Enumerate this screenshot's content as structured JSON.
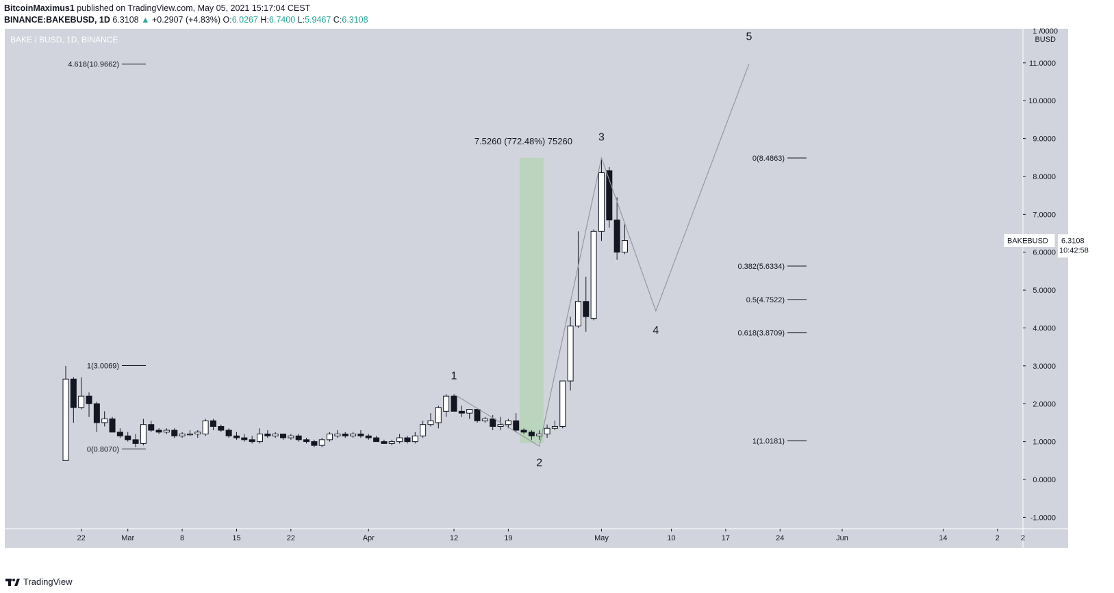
{
  "header": {
    "author": "BitcoinMaximus1",
    "published_text": "published on TradingView.com, May 05, 2021 15:17:04 CEST",
    "symbol": "BINANCE:BAKEBUSD, 1D",
    "last": "6.3108",
    "arrow": "▲",
    "change": "+0.2907 (+4.83%)",
    "o_label": "O:",
    "o": "6.0267",
    "h_label": "H:",
    "h": "6.7400",
    "l_label": "L:",
    "l": "5.9467",
    "c_label": "C:",
    "c": "6.3108"
  },
  "footer": {
    "brand": "TradingView"
  },
  "chart_data": {
    "type": "candlestick",
    "title": "BAKE / BUSD, 1D, BINANCE",
    "ylabel": "BUSD",
    "y_axis_top_label": "1 /0000",
    "ylim": [
      -1.3,
      11.9
    ],
    "y_ticks": [
      "11.0000",
      "10.0000",
      "9.0000",
      "8.0000",
      "7.0000",
      "6.0000",
      "5.0000",
      "4.0000",
      "3.0000",
      "2.0000",
      "1.0000",
      "0.0000",
      "-1.0000"
    ],
    "y_tick_values": [
      11,
      10,
      9,
      8,
      7,
      6,
      5,
      4,
      3,
      2,
      1,
      0,
      -1
    ],
    "x_start_day": 0,
    "x_end_day": 95,
    "x_ticks": [
      {
        "label": "22",
        "day": 2
      },
      {
        "label": "Mar",
        "day": 8
      },
      {
        "label": "8",
        "day": 15
      },
      {
        "label": "15",
        "day": 22
      },
      {
        "label": "22",
        "day": 29
      },
      {
        "label": "Apr",
        "day": 39
      },
      {
        "label": "12",
        "day": 50
      },
      {
        "label": "19",
        "day": 57
      },
      {
        "label": "May",
        "day": 69
      },
      {
        "label": "10",
        "day": 78
      },
      {
        "label": "17",
        "day": 85
      },
      {
        "label": "24",
        "day": 92
      },
      {
        "label": "Jun",
        "day": 100
      },
      {
        "label": "14",
        "day": 113
      },
      {
        "label": "2",
        "day": 120
      }
    ],
    "candles": [
      {
        "d": 0,
        "o": 0.5,
        "h": 3.0,
        "l": 0.5,
        "c": 2.65
      },
      {
        "d": 1,
        "o": 2.65,
        "h": 2.7,
        "l": 1.5,
        "c": 1.9
      },
      {
        "d": 2,
        "o": 1.9,
        "h": 2.7,
        "l": 1.85,
        "c": 2.2
      },
      {
        "d": 3,
        "o": 2.2,
        "h": 2.3,
        "l": 1.65,
        "c": 2.0
      },
      {
        "d": 4,
        "o": 2.0,
        "h": 2.05,
        "l": 1.25,
        "c": 1.5
      },
      {
        "d": 5,
        "o": 1.5,
        "h": 1.8,
        "l": 1.4,
        "c": 1.6
      },
      {
        "d": 6,
        "o": 1.6,
        "h": 1.65,
        "l": 1.25,
        "c": 1.25
      },
      {
        "d": 7,
        "o": 1.25,
        "h": 1.35,
        "l": 1.1,
        "c": 1.15
      },
      {
        "d": 8,
        "o": 1.15,
        "h": 1.25,
        "l": 1.0,
        "c": 1.05
      },
      {
        "d": 9,
        "o": 1.05,
        "h": 1.2,
        "l": 0.85,
        "c": 0.95
      },
      {
        "d": 10,
        "o": 0.95,
        "h": 1.6,
        "l": 0.9,
        "c": 1.45
      },
      {
        "d": 11,
        "o": 1.45,
        "h": 1.55,
        "l": 1.25,
        "c": 1.3
      },
      {
        "d": 12,
        "o": 1.3,
        "h": 1.35,
        "l": 1.2,
        "c": 1.25
      },
      {
        "d": 13,
        "o": 1.25,
        "h": 1.35,
        "l": 1.2,
        "c": 1.3
      },
      {
        "d": 14,
        "o": 1.3,
        "h": 1.35,
        "l": 1.1,
        "c": 1.15
      },
      {
        "d": 15,
        "o": 1.15,
        "h": 1.25,
        "l": 1.1,
        "c": 1.2
      },
      {
        "d": 16,
        "o": 1.2,
        "h": 1.3,
        "l": 1.15,
        "c": 1.2
      },
      {
        "d": 17,
        "o": 1.2,
        "h": 1.3,
        "l": 1.1,
        "c": 1.25
      },
      {
        "d": 18,
        "o": 1.2,
        "h": 1.6,
        "l": 1.15,
        "c": 1.55
      },
      {
        "d": 19,
        "o": 1.55,
        "h": 1.6,
        "l": 1.3,
        "c": 1.4
      },
      {
        "d": 20,
        "o": 1.4,
        "h": 1.45,
        "l": 1.25,
        "c": 1.3
      },
      {
        "d": 21,
        "o": 1.3,
        "h": 1.35,
        "l": 1.1,
        "c": 1.15
      },
      {
        "d": 22,
        "o": 1.15,
        "h": 1.25,
        "l": 1.05,
        "c": 1.1
      },
      {
        "d": 23,
        "o": 1.1,
        "h": 1.2,
        "l": 1.0,
        "c": 1.05
      },
      {
        "d": 24,
        "o": 1.05,
        "h": 1.15,
        "l": 0.95,
        "c": 1.0
      },
      {
        "d": 25,
        "o": 1.0,
        "h": 1.35,
        "l": 0.95,
        "c": 1.2
      },
      {
        "d": 26,
        "o": 1.2,
        "h": 1.3,
        "l": 1.1,
        "c": 1.15
      },
      {
        "d": 27,
        "o": 1.15,
        "h": 1.25,
        "l": 1.1,
        "c": 1.2
      },
      {
        "d": 28,
        "o": 1.2,
        "h": 1.2,
        "l": 1.05,
        "c": 1.1
      },
      {
        "d": 29,
        "o": 1.1,
        "h": 1.2,
        "l": 1.05,
        "c": 1.15
      },
      {
        "d": 30,
        "o": 1.15,
        "h": 1.2,
        "l": 1.0,
        "c": 1.05
      },
      {
        "d": 31,
        "o": 1.05,
        "h": 1.1,
        "l": 0.95,
        "c": 1.0
      },
      {
        "d": 32,
        "o": 1.0,
        "h": 1.05,
        "l": 0.85,
        "c": 0.9
      },
      {
        "d": 33,
        "o": 0.9,
        "h": 1.1,
        "l": 0.85,
        "c": 1.05
      },
      {
        "d": 34,
        "o": 1.05,
        "h": 1.25,
        "l": 1.0,
        "c": 1.2
      },
      {
        "d": 35,
        "o": 1.15,
        "h": 1.3,
        "l": 1.1,
        "c": 1.2
      },
      {
        "d": 36,
        "o": 1.2,
        "h": 1.25,
        "l": 1.1,
        "c": 1.15
      },
      {
        "d": 37,
        "o": 1.15,
        "h": 1.25,
        "l": 1.1,
        "c": 1.2
      },
      {
        "d": 38,
        "o": 1.2,
        "h": 1.3,
        "l": 1.1,
        "c": 1.15
      },
      {
        "d": 39,
        "o": 1.15,
        "h": 1.2,
        "l": 1.05,
        "c": 1.1
      },
      {
        "d": 40,
        "o": 1.1,
        "h": 1.15,
        "l": 1.0,
        "c": 1.0
      },
      {
        "d": 41,
        "o": 1.0,
        "h": 1.05,
        "l": 0.95,
        "c": 0.95
      },
      {
        "d": 42,
        "o": 0.95,
        "h": 1.05,
        "l": 0.9,
        "c": 1.0
      },
      {
        "d": 43,
        "o": 1.0,
        "h": 1.2,
        "l": 0.95,
        "c": 1.1
      },
      {
        "d": 44,
        "o": 1.1,
        "h": 1.15,
        "l": 0.95,
        "c": 1.0
      },
      {
        "d": 45,
        "o": 1.0,
        "h": 1.25,
        "l": 0.95,
        "c": 1.15
      },
      {
        "d": 46,
        "o": 1.15,
        "h": 1.55,
        "l": 1.1,
        "c": 1.45
      },
      {
        "d": 47,
        "o": 1.45,
        "h": 1.75,
        "l": 1.4,
        "c": 1.55
      },
      {
        "d": 48,
        "o": 1.5,
        "h": 1.95,
        "l": 1.35,
        "c": 1.9
      },
      {
        "d": 49,
        "o": 1.8,
        "h": 2.25,
        "l": 1.65,
        "c": 2.2
      },
      {
        "d": 50,
        "o": 2.2,
        "h": 2.25,
        "l": 1.8,
        "c": 1.8
      },
      {
        "d": 51,
        "o": 1.8,
        "h": 1.95,
        "l": 1.65,
        "c": 1.75
      },
      {
        "d": 52,
        "o": 1.75,
        "h": 1.85,
        "l": 1.6,
        "c": 1.85
      },
      {
        "d": 53,
        "o": 1.85,
        "h": 1.85,
        "l": 1.5,
        "c": 1.55
      },
      {
        "d": 54,
        "o": 1.55,
        "h": 1.65,
        "l": 1.5,
        "c": 1.6
      },
      {
        "d": 55,
        "o": 1.6,
        "h": 1.7,
        "l": 1.3,
        "c": 1.4
      },
      {
        "d": 56,
        "o": 1.4,
        "h": 1.65,
        "l": 1.3,
        "c": 1.45
      },
      {
        "d": 57,
        "o": 1.45,
        "h": 1.6,
        "l": 1.35,
        "c": 1.55
      },
      {
        "d": 58,
        "o": 1.55,
        "h": 1.75,
        "l": 1.25,
        "c": 1.3
      },
      {
        "d": 59,
        "o": 1.3,
        "h": 1.35,
        "l": 1.2,
        "c": 1.25
      },
      {
        "d": 60,
        "o": 1.25,
        "h": 1.3,
        "l": 1.05,
        "c": 1.15
      },
      {
        "d": 61,
        "o": 1.15,
        "h": 1.3,
        "l": 1.05,
        "c": 1.2
      },
      {
        "d": 62,
        "o": 1.2,
        "h": 1.45,
        "l": 1.1,
        "c": 1.35
      },
      {
        "d": 63,
        "o": 1.35,
        "h": 1.55,
        "l": 1.3,
        "c": 1.4
      },
      {
        "d": 64,
        "o": 1.4,
        "h": 2.6,
        "l": 1.35,
        "c": 2.6
      },
      {
        "d": 65,
        "o": 2.6,
        "h": 4.3,
        "l": 2.35,
        "c": 4.05
      },
      {
        "d": 66,
        "o": 4.05,
        "h": 6.55,
        "l": 4.0,
        "c": 4.7
      },
      {
        "d": 67,
        "o": 4.7,
        "h": 5.35,
        "l": 3.9,
        "c": 4.3
      },
      {
        "d": 68,
        "o": 4.25,
        "h": 6.6,
        "l": 4.2,
        "c": 6.55
      },
      {
        "d": 69,
        "o": 6.55,
        "h": 8.49,
        "l": 6.3,
        "c": 8.1
      },
      {
        "d": 70,
        "o": 8.15,
        "h": 8.25,
        "l": 6.65,
        "c": 6.85
      },
      {
        "d": 71,
        "o": 6.85,
        "h": 7.45,
        "l": 5.8,
        "c": 6.0
      },
      {
        "d": 72,
        "o": 6.0,
        "h": 6.74,
        "l": 5.95,
        "c": 6.31
      }
    ],
    "last_price_label": {
      "symbol": "BAKEBUSD",
      "price": "6.3108",
      "timer": "10:42:58",
      "value": 6.3108
    },
    "measure": {
      "label": "7.5260 (772.48%) 75260",
      "from": 0.96,
      "to": 8.49,
      "day_start": 59,
      "day_end": 61
    },
    "wave_path": [
      {
        "label": "",
        "day": 50,
        "value": 2.25
      },
      {
        "label": "",
        "day": 61,
        "value": 0.88
      },
      {
        "label": "",
        "day": 69,
        "value": 8.49
      },
      {
        "label": "",
        "day": 76,
        "value": 4.45
      },
      {
        "label": "",
        "day": 88,
        "value": 10.97
      }
    ],
    "wave_labels": [
      {
        "label": "1",
        "day": 50,
        "value": 2.65
      },
      {
        "label": "2",
        "day": 61,
        "value": 0.35
      },
      {
        "label": "3",
        "day": 69,
        "value": 8.95
      },
      {
        "label": "4",
        "day": 76,
        "value": 3.85
      },
      {
        "label": "5",
        "day": 88,
        "value": 11.6
      }
    ],
    "fib_left": [
      {
        "label": "4.618(10.9662)",
        "value": 10.9662
      },
      {
        "label": "1(3.0069)",
        "value": 3.0069
      },
      {
        "label": "0(0.8070)",
        "value": 0.807
      }
    ],
    "fib_right": [
      {
        "label": "0(8.4863)",
        "value": 8.4863
      },
      {
        "label": "0.382(5.6334)",
        "value": 5.6334
      },
      {
        "label": "0.5(4.7522)",
        "value": 4.7522
      },
      {
        "label": "0.618(3.8709)",
        "value": 3.8709
      },
      {
        "label": "1(1.0181)",
        "value": 1.0181
      }
    ],
    "colors": {
      "background": "#d1d4dc",
      "up": "#ffffff",
      "down": "#131722",
      "measure": "#b7d3b7",
      "path": "#9598a1"
    }
  }
}
